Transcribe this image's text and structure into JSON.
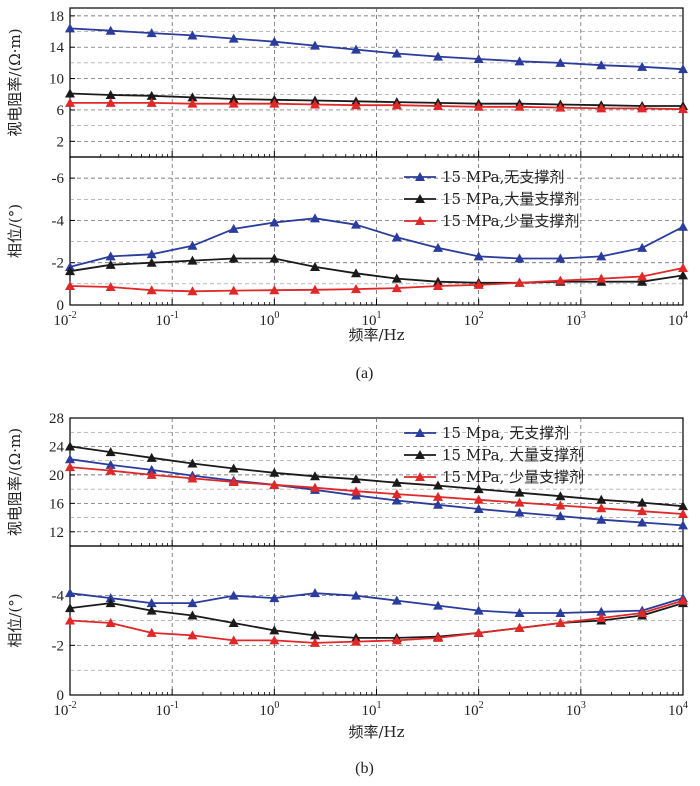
{
  "chart_data": [
    {
      "panel": "(a)",
      "type": "line",
      "x_scale": "log",
      "xlabel": "频率/Hz",
      "x_ticks": [
        {
          "base": "10",
          "exp": "-2"
        },
        {
          "base": "10",
          "exp": "-1"
        },
        {
          "base": "10",
          "exp": "0"
        },
        {
          "base": "10",
          "exp": "1"
        },
        {
          "base": "10",
          "exp": "2"
        },
        {
          "base": "10",
          "exp": "3"
        },
        {
          "base": "10",
          "exp": "4"
        }
      ],
      "xlim": [
        0.01,
        10000
      ],
      "top": {
        "ylabel": "视电阻率/(Ω·m)",
        "ylim": [
          0,
          19
        ],
        "yticks": [
          "2",
          "6",
          "10",
          "14",
          "18"
        ],
        "series": [
          {
            "name": "15 MPa,无支撑剂",
            "color": "#2a3c9c",
            "x": [
              0.01,
              0.025,
              0.063,
              0.158,
              0.4,
              1,
              2.5,
              6.3,
              15.8,
              40,
              100,
              251,
              631,
              1585,
              3981,
              10000
            ],
            "y": [
              16.4,
              16.1,
              15.8,
              15.5,
              15.1,
              14.7,
              14.2,
              13.7,
              13.2,
              12.8,
              12.5,
              12.2,
              12.0,
              11.7,
              11.5,
              11.2
            ]
          },
          {
            "name": "15 MPa,大量支撑剂",
            "color": "#1a1a1a",
            "x": [
              0.01,
              0.025,
              0.063,
              0.158,
              0.4,
              1,
              2.5,
              6.3,
              15.8,
              40,
              100,
              251,
              631,
              1585,
              3981,
              10000
            ],
            "y": [
              8.1,
              7.9,
              7.8,
              7.6,
              7.4,
              7.3,
              7.2,
              7.1,
              7.0,
              6.9,
              6.8,
              6.8,
              6.7,
              6.6,
              6.5,
              6.5
            ]
          },
          {
            "name": "15 MPa,少量支撑剂",
            "color": "#e02828",
            "x": [
              0.01,
              0.025,
              0.063,
              0.158,
              0.4,
              1,
              2.5,
              6.3,
              15.8,
              40,
              100,
              251,
              631,
              1585,
              3981,
              10000
            ],
            "y": [
              6.9,
              6.9,
              6.9,
              6.8,
              6.8,
              6.8,
              6.7,
              6.6,
              6.6,
              6.5,
              6.4,
              6.4,
              6.3,
              6.2,
              6.2,
              6.1
            ]
          }
        ]
      },
      "bottom": {
        "ylabel": "相位/(°)",
        "ylim": [
          0,
          -7
        ],
        "yticks": [
          "0",
          "-2",
          "-4",
          "-6"
        ],
        "series": [
          {
            "name": "15 MPa,无支撑剂",
            "color": "#2a3c9c",
            "x": [
              0.01,
              0.025,
              0.063,
              0.158,
              0.4,
              1,
              2.5,
              6.3,
              15.8,
              40,
              100,
              251,
              631,
              1585,
              3981,
              10000
            ],
            "y": [
              -1.8,
              -2.3,
              -2.4,
              -2.8,
              -3.6,
              -3.9,
              -4.1,
              -3.8,
              -3.2,
              -2.7,
              -2.3,
              -2.2,
              -2.2,
              -2.3,
              -2.7,
              -3.7
            ]
          },
          {
            "name": "15 MPa,大量支撑剂",
            "color": "#1a1a1a",
            "x": [
              0.01,
              0.025,
              0.063,
              0.158,
              0.4,
              1,
              2.5,
              6.3,
              15.8,
              40,
              100,
              251,
              631,
              1585,
              3981,
              10000
            ],
            "y": [
              -1.6,
              -1.9,
              -2.0,
              -2.1,
              -2.2,
              -2.2,
              -1.8,
              -1.5,
              -1.25,
              -1.1,
              -1.05,
              -1.05,
              -1.1,
              -1.1,
              -1.1,
              -1.4
            ]
          },
          {
            "name": "15 MPa,少量支撑剂",
            "color": "#e02828",
            "x": [
              0.01,
              0.025,
              0.063,
              0.158,
              0.4,
              1,
              2.5,
              6.3,
              15.8,
              40,
              100,
              251,
              631,
              1585,
              3981,
              10000
            ],
            "y": [
              -0.9,
              -0.85,
              -0.7,
              -0.65,
              -0.68,
              -0.7,
              -0.72,
              -0.75,
              -0.8,
              -0.9,
              -0.95,
              -1.05,
              -1.15,
              -1.25,
              -1.35,
              -1.75
            ]
          }
        ]
      },
      "legend": {
        "location": "inside bottom panel, top-right",
        "entries": [
          "15 MPa,无支撑剂",
          "15 MPa,大量支撑剂",
          "15 MPa,少量支撑剂"
        ]
      },
      "grid": true
    },
    {
      "panel": "(b)",
      "type": "line",
      "x_scale": "log",
      "xlabel": "频率/Hz",
      "x_ticks": [
        {
          "base": "10",
          "exp": "-2"
        },
        {
          "base": "10",
          "exp": "-1"
        },
        {
          "base": "10",
          "exp": "0"
        },
        {
          "base": "10",
          "exp": "1"
        },
        {
          "base": "10",
          "exp": "2"
        },
        {
          "base": "10",
          "exp": "3"
        },
        {
          "base": "10",
          "exp": "4"
        }
      ],
      "xlim": [
        0.01,
        10000
      ],
      "top": {
        "ylabel": "视电阻率/(Ω·m)",
        "ylim": [
          10,
          28
        ],
        "yticks": [
          "12",
          "16",
          "20",
          "24",
          "28"
        ],
        "series": [
          {
            "name": "15 Mpa, 无支撑剂",
            "color": "#2a3c9c",
            "x": [
              0.01,
              0.025,
              0.063,
              0.158,
              0.4,
              1,
              2.5,
              6.3,
              15.8,
              40,
              100,
              251,
              631,
              1585,
              3981,
              10000
            ],
            "y": [
              22.2,
              21.4,
              20.7,
              19.9,
              19.2,
              18.6,
              17.9,
              17.1,
              16.4,
              15.8,
              15.2,
              14.7,
              14.2,
              13.7,
              13.3,
              12.9
            ]
          },
          {
            "name": "15 MPa, 大量支撑剂",
            "color": "#1a1a1a",
            "x": [
              0.01,
              0.025,
              0.063,
              0.158,
              0.4,
              1,
              2.5,
              6.3,
              15.8,
              40,
              100,
              251,
              631,
              1585,
              3981,
              10000
            ],
            "y": [
              24.0,
              23.2,
              22.4,
              21.6,
              20.9,
              20.3,
              19.8,
              19.4,
              18.9,
              18.5,
              18.0,
              17.5,
              17.0,
              16.5,
              16.1,
              15.6
            ]
          },
          {
            "name": "15 MPa, 少量支撑剂",
            "color": "#e02828",
            "x": [
              0.01,
              0.025,
              0.063,
              0.158,
              0.4,
              1,
              2.5,
              6.3,
              15.8,
              40,
              100,
              251,
              631,
              1585,
              3981,
              10000
            ],
            "y": [
              21.1,
              20.6,
              20.0,
              19.5,
              19.0,
              18.6,
              18.2,
              17.7,
              17.3,
              16.9,
              16.5,
              16.1,
              15.7,
              15.3,
              14.9,
              14.5
            ]
          }
        ]
      },
      "bottom": {
        "ylabel": "相位/(°)",
        "ylim": [
          0,
          -6
        ],
        "yticks": [
          "0",
          "-2",
          "-4"
        ],
        "series": [
          {
            "name": "15 Mpa, 无支撑剂",
            "color": "#2a3c9c",
            "x": [
              0.01,
              0.025,
              0.063,
              0.158,
              0.4,
              1,
              2.5,
              6.3,
              15.8,
              40,
              100,
              251,
              631,
              1585,
              3981,
              10000
            ],
            "y": [
              -4.1,
              -3.9,
              -3.7,
              -3.7,
              -4.0,
              -3.9,
              -4.1,
              -4.0,
              -3.8,
              -3.6,
              -3.4,
              -3.3,
              -3.3,
              -3.35,
              -3.4,
              -3.9
            ]
          },
          {
            "name": "15 MPa, 大量支撑剂",
            "color": "#1a1a1a",
            "x": [
              0.01,
              0.025,
              0.063,
              0.158,
              0.4,
              1,
              2.5,
              6.3,
              15.8,
              40,
              100,
              251,
              631,
              1585,
              3981,
              10000
            ],
            "y": [
              -3.5,
              -3.7,
              -3.4,
              -3.2,
              -2.9,
              -2.6,
              -2.4,
              -2.3,
              -2.3,
              -2.35,
              -2.5,
              -2.7,
              -2.9,
              -3.0,
              -3.2,
              -3.7
            ]
          },
          {
            "name": "15 MPa, 少量支撑剂",
            "color": "#e02828",
            "x": [
              0.01,
              0.025,
              0.063,
              0.158,
              0.4,
              1,
              2.5,
              6.3,
              15.8,
              40,
              100,
              251,
              631,
              1585,
              3981,
              10000
            ],
            "y": [
              -3.0,
              -2.9,
              -2.5,
              -2.4,
              -2.2,
              -2.2,
              -2.1,
              -2.15,
              -2.2,
              -2.3,
              -2.5,
              -2.7,
              -2.9,
              -3.1,
              -3.3,
              -3.8
            ]
          }
        ]
      },
      "legend": {
        "location": "inside top panel, top-right",
        "entries": [
          "15 Mpa, 无支撑剂",
          "15 MPa, 大量支撑剂",
          "15 MPa, 少量支撑剂"
        ]
      },
      "grid": true
    }
  ]
}
